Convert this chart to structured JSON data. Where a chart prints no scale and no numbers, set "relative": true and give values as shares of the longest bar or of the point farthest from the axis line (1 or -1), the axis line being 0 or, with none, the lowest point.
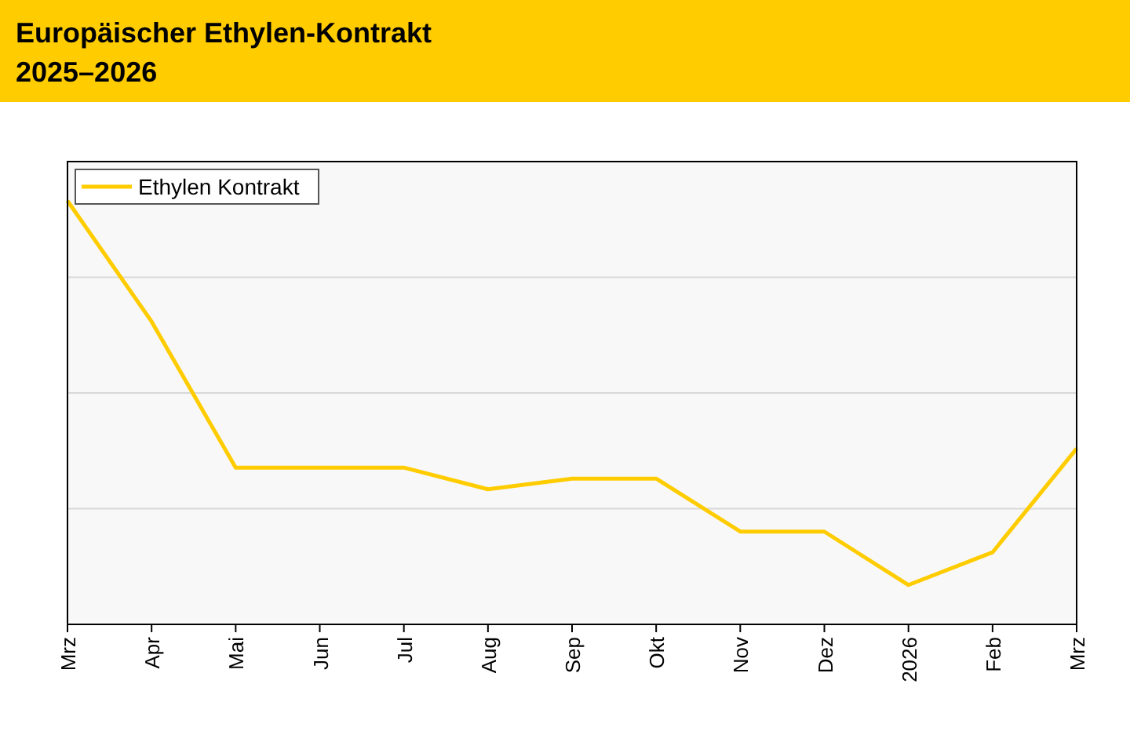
{
  "chart_data": {
    "type": "line",
    "title": "Europäischer Ethylen-Kontrakt",
    "subtitle": "2025–2026",
    "categories": [
      "Mrz",
      "Apr",
      "Mai",
      "Jun",
      "Jul",
      "Aug",
      "Sep",
      "Okt",
      "Nov",
      "Dez",
      "2026",
      "Feb",
      "Mrz"
    ],
    "relative": true,
    "grid": "y",
    "legend": "top left",
    "marker": "none",
    "line_style": "solid",
    "series": [
      {
        "name": "Ethylen Kontrakt",
        "color": "#ffcc00",
        "values": [
          1.0,
          0.715,
          0.37,
          0.37,
          0.37,
          0.319,
          0.344,
          0.344,
          0.219,
          0.219,
          0.093,
          0.17,
          0.415
        ]
      }
    ]
  }
}
